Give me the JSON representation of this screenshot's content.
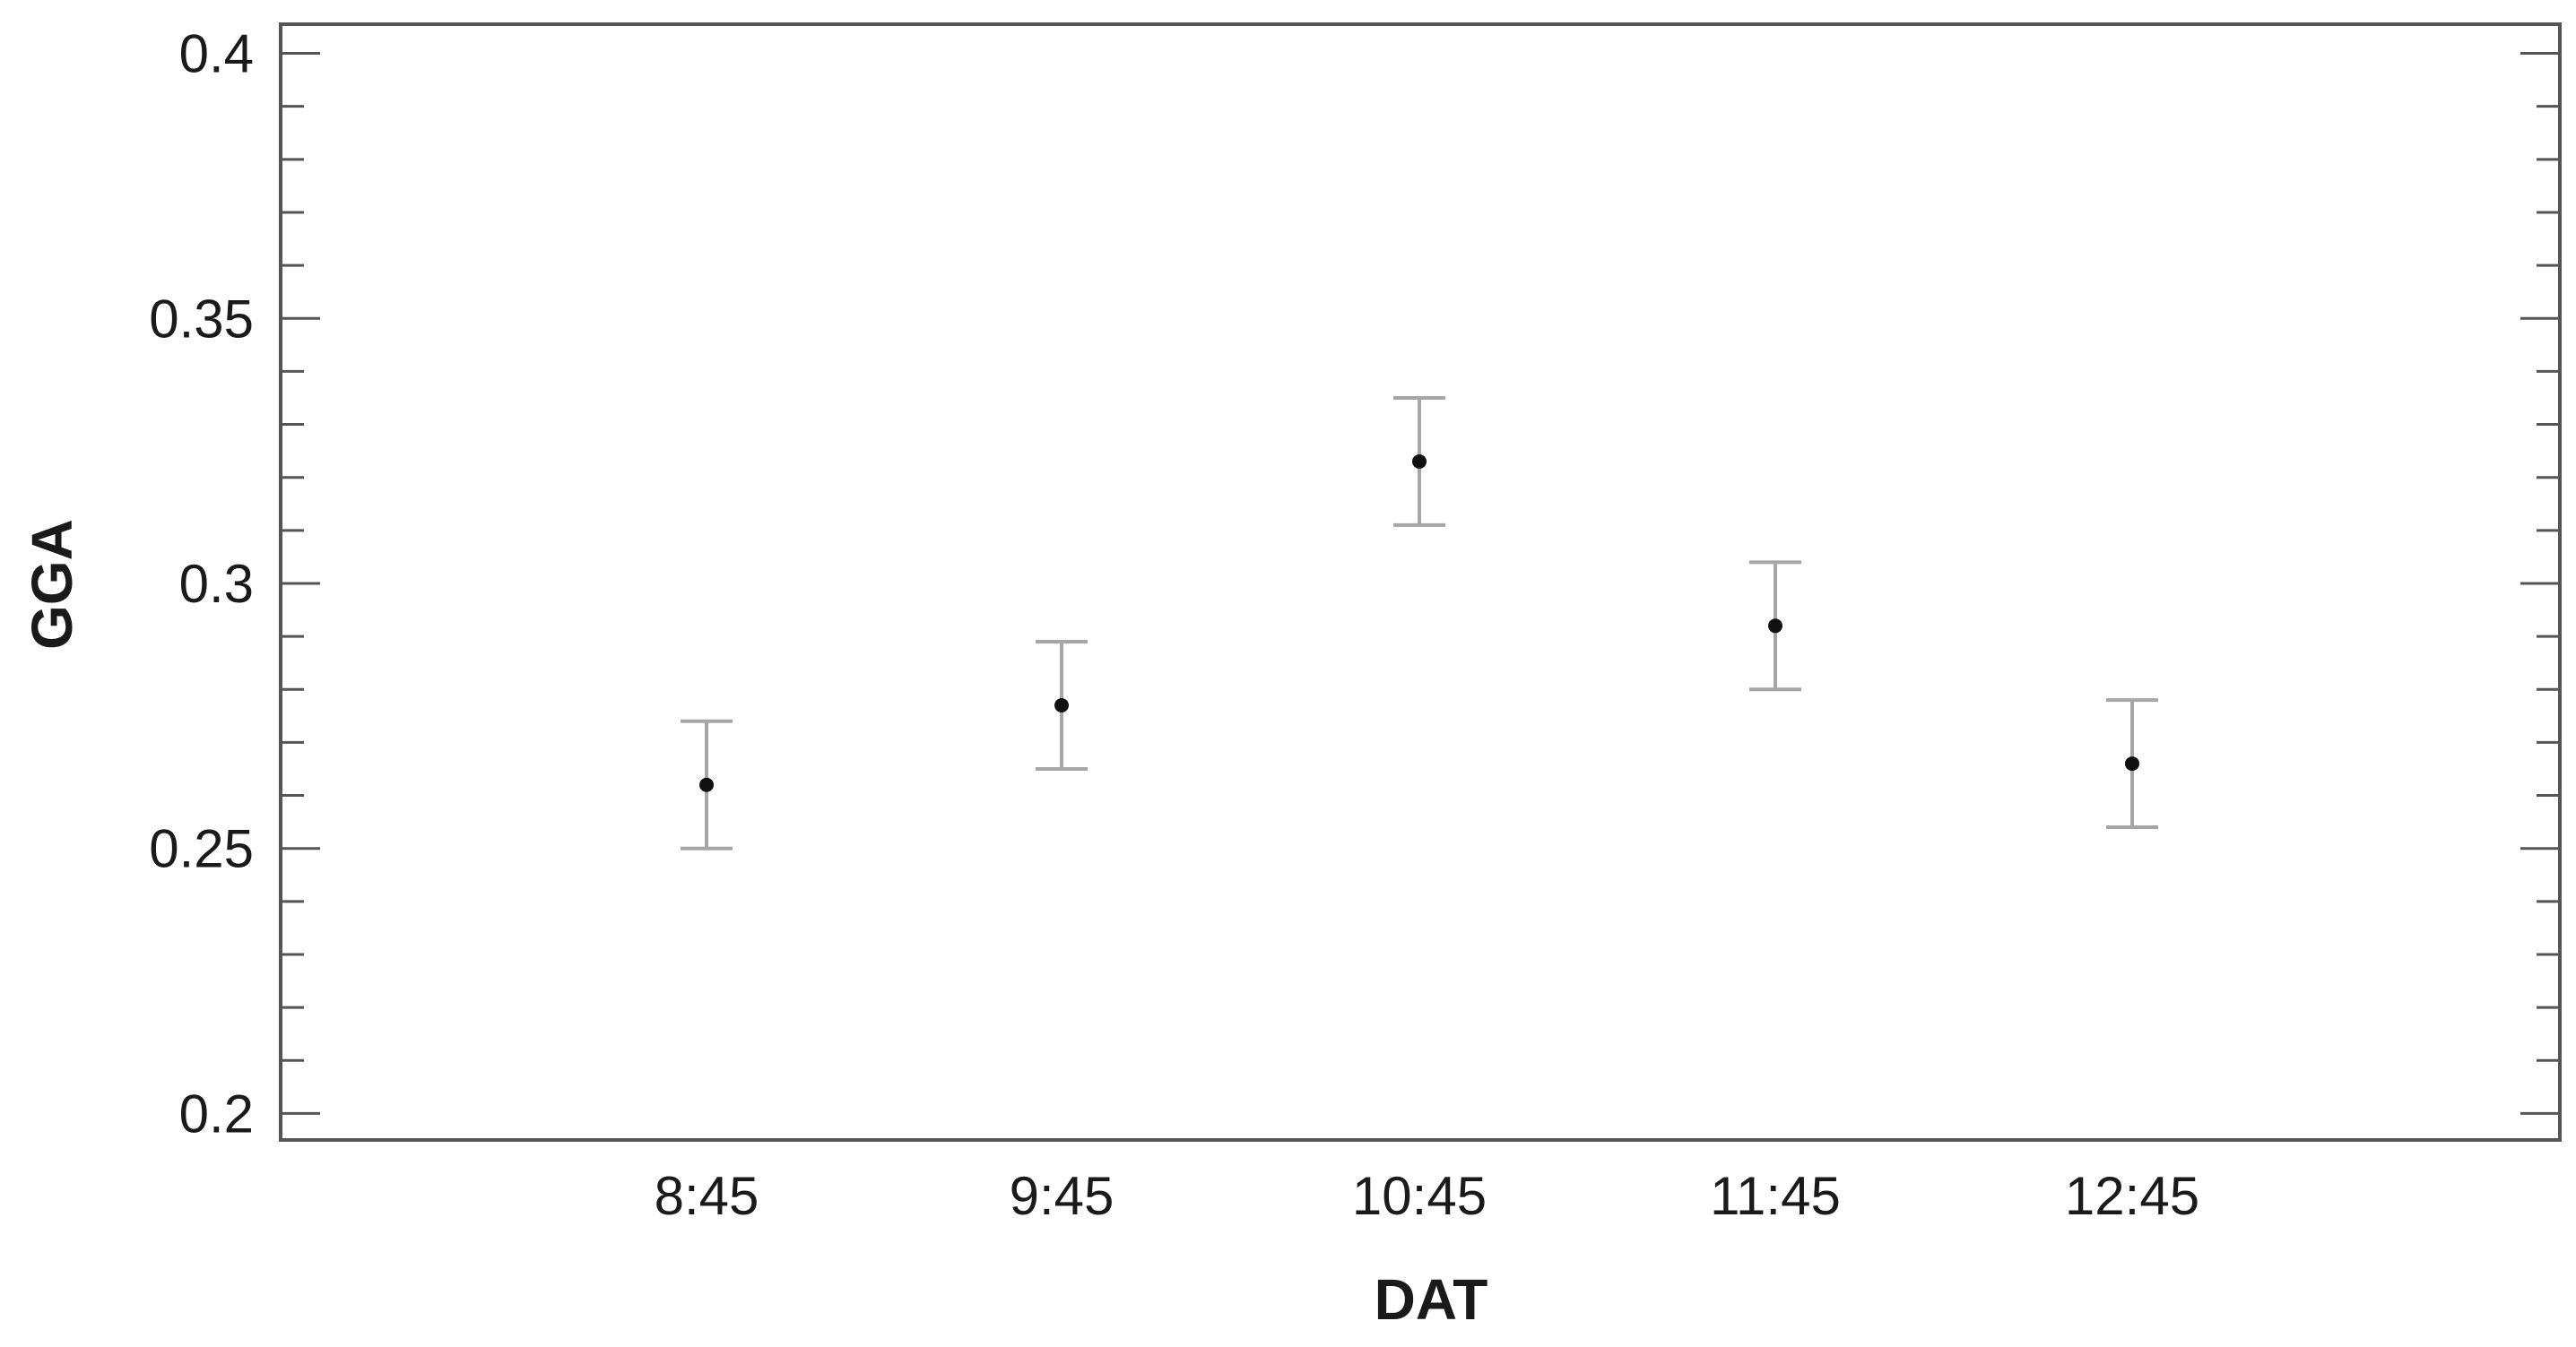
{
  "chart_data": {
    "type": "scatter",
    "subtype": "means-with-error-bars",
    "title": "",
    "xlabel": "DAT",
    "ylabel": "GGA",
    "categories": [
      "8:45",
      "9:45",
      "10:45",
      "11:45",
      "12:45"
    ],
    "values": [
      0.262,
      0.277,
      0.323,
      0.292,
      0.266
    ],
    "error_low": [
      0.25,
      0.265,
      0.311,
      0.28,
      0.254
    ],
    "error_high": [
      0.274,
      0.289,
      0.335,
      0.304,
      0.278
    ],
    "ylim": [
      0.195,
      0.4055
    ],
    "yticks": [
      "0.2",
      "0.25",
      "0.3",
      "0.35",
      "0.4"
    ],
    "ytick_values": [
      0.2,
      0.25,
      0.3,
      0.35,
      0.4
    ],
    "minor_ticks_per_major": 5,
    "grid": false,
    "legend": "none",
    "colors": {
      "point": "#111111",
      "error_bar": "#a6a6a6",
      "frame": "#555555",
      "text": "#1a1a1a"
    }
  }
}
